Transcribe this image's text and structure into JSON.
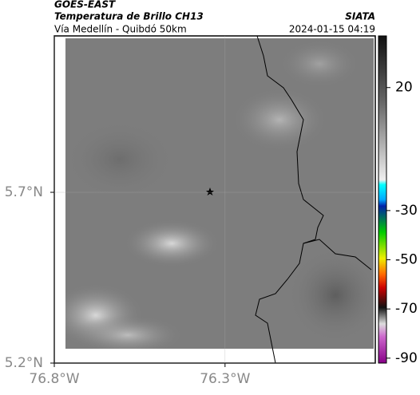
{
  "header": {
    "source": "GOES-EAST",
    "title": "Temperatura de Brillo CH13",
    "subtitle": "Vía Medellín - Quibdó 50km",
    "agency": "SIATA",
    "timestamp": "2024-01-15 04:19"
  },
  "map": {
    "lonlim": [
      -76.8,
      -75.86
    ],
    "latlim": [
      5.2,
      6.158
    ],
    "lonticks": [
      {
        "value": -76.8,
        "label": "76.8°W"
      },
      {
        "value": -76.3,
        "label": "76.3°W"
      }
    ],
    "latticks": [
      {
        "value": 5.7,
        "label": "5.7°N"
      },
      {
        "value": 5.2,
        "label": "5.2°N"
      }
    ]
  },
  "colorbar": {
    "lim": [
      41,
      -92
    ],
    "ticks": [
      20,
      -30,
      -50,
      -70,
      -90
    ]
  }
}
